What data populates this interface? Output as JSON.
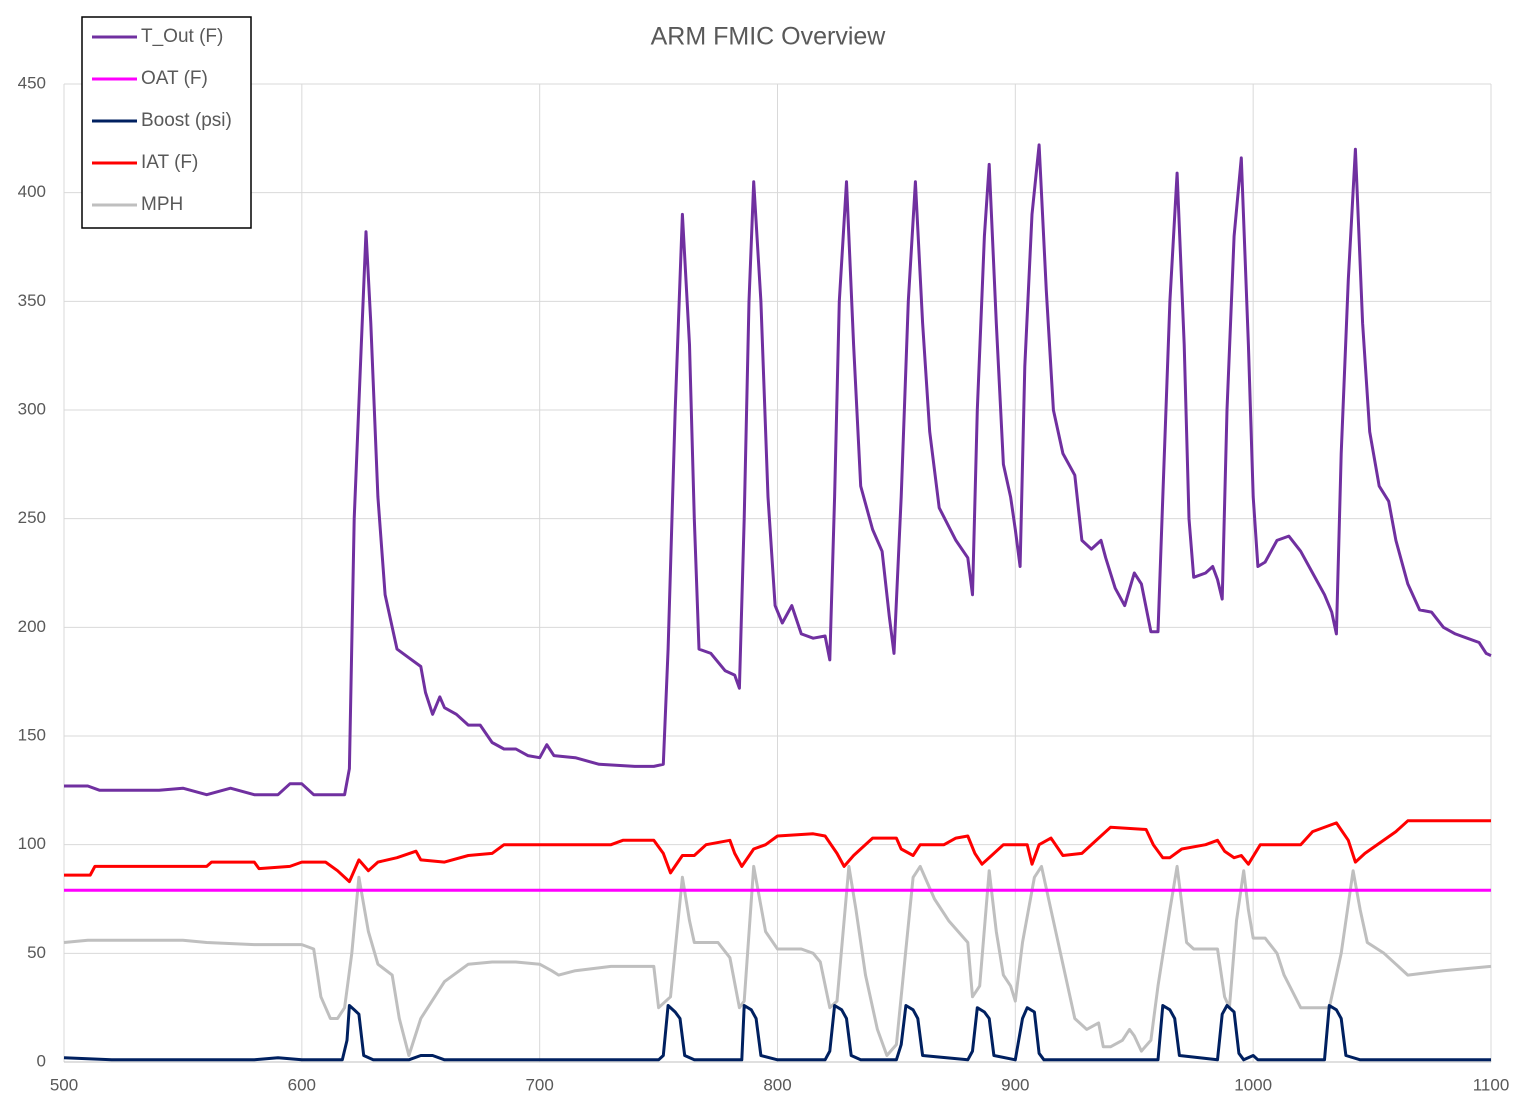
{
  "chart_data": {
    "type": "line",
    "title": "ARM FMIC Overview",
    "xlim": [
      500,
      1100
    ],
    "xticks": [
      500,
      600,
      700,
      800,
      900,
      1000,
      1100
    ],
    "ylim": [
      0,
      450
    ],
    "yticks": [
      0,
      50,
      100,
      150,
      200,
      250,
      300,
      350,
      400,
      450
    ],
    "grid": true,
    "series": [
      {
        "name": "T_Out (F)",
        "color": "#7030a0",
        "x": [
          500,
          510,
          515,
          540,
          550,
          560,
          570,
          580,
          590,
          595,
          600,
          605,
          615,
          618,
          620,
          622,
          625,
          627,
          629,
          632,
          635,
          640,
          645,
          650,
          652,
          655,
          658,
          660,
          665,
          670,
          675,
          680,
          685,
          690,
          695,
          700,
          703,
          706,
          715,
          725,
          740,
          748,
          752,
          754,
          757,
          760,
          763,
          765,
          767,
          772,
          778,
          782,
          784,
          786,
          788,
          790,
          793,
          796,
          799,
          802,
          806,
          810,
          815,
          820,
          822,
          824,
          826,
          829,
          832,
          835,
          840,
          844,
          847,
          849,
          852,
          855,
          858,
          861,
          864,
          868,
          875,
          880,
          882,
          884,
          887,
          889,
          892,
          895,
          898,
          900,
          902,
          904,
          907,
          910,
          913,
          916,
          920,
          925,
          928,
          932,
          936,
          938,
          942,
          946,
          950,
          953,
          957,
          960,
          962,
          965,
          968,
          971,
          973,
          975,
          980,
          983,
          985,
          987,
          989,
          992,
          995,
          998,
          1000,
          1002,
          1005,
          1010,
          1015,
          1020,
          1025,
          1030,
          1033,
          1035,
          1037,
          1040,
          1043,
          1046,
          1049,
          1053,
          1057,
          1060,
          1065,
          1070,
          1075,
          1080,
          1085,
          1090,
          1095,
          1098,
          1100
        ],
        "values": [
          127,
          127,
          125,
          125,
          126,
          123,
          126,
          123,
          123,
          128,
          128,
          123,
          123,
          123,
          135,
          250,
          330,
          382,
          340,
          260,
          215,
          190,
          186,
          182,
          170,
          160,
          168,
          163,
          160,
          155,
          155,
          147,
          144,
          144,
          141,
          140,
          146,
          141,
          140,
          137,
          136,
          136,
          137,
          190,
          300,
          390,
          330,
          250,
          190,
          188,
          180,
          178,
          172,
          250,
          350,
          405,
          350,
          260,
          210,
          202,
          210,
          197,
          195,
          196,
          185,
          260,
          350,
          405,
          330,
          265,
          245,
          235,
          205,
          188,
          260,
          350,
          405,
          340,
          290,
          255,
          240,
          232,
          215,
          300,
          380,
          413,
          340,
          275,
          260,
          245,
          228,
          320,
          390,
          422,
          355,
          300,
          280,
          270,
          240,
          236,
          240,
          232,
          218,
          210,
          225,
          220,
          198,
          198,
          260,
          350,
          409,
          330,
          250,
          223,
          225,
          228,
          222,
          213,
          300,
          380,
          416,
          330,
          260,
          228,
          230,
          240,
          242,
          235,
          225,
          215,
          207,
          197,
          280,
          360,
          420,
          340,
          290,
          265,
          258,
          240,
          220,
          208,
          207,
          200,
          197,
          195,
          193,
          188,
          187
        ]
      },
      {
        "name": "OAT (F)",
        "color": "#ff00ff",
        "x": [
          500,
          1100
        ],
        "values": [
          79,
          79
        ]
      },
      {
        "name": "Boost (psi)",
        "color": "#002060",
        "x": [
          500,
          520,
          580,
          590,
          600,
          617,
          619,
          620,
          622,
          624,
          626,
          630,
          645,
          650,
          655,
          660,
          700,
          750,
          752,
          754,
          757,
          759,
          761,
          765,
          780,
          785,
          786,
          789,
          791,
          793,
          800,
          820,
          822,
          824,
          827,
          829,
          831,
          835,
          850,
          852,
          854,
          857,
          859,
          861,
          880,
          882,
          884,
          887,
          889,
          891,
          900,
          903,
          905,
          908,
          910,
          912,
          960,
          962,
          965,
          967,
          969,
          985,
          987,
          989,
          992,
          994,
          996,
          1000,
          1002,
          1030,
          1032,
          1035,
          1037,
          1039,
          1045,
          1100
        ],
        "values": [
          2,
          1,
          1,
          2,
          1,
          1,
          10,
          26,
          24,
          22,
          3,
          1,
          1,
          3,
          3,
          1,
          1,
          1,
          3,
          26,
          23,
          20,
          3,
          1,
          1,
          1,
          26,
          24,
          20,
          3,
          1,
          1,
          5,
          26,
          24,
          20,
          3,
          1,
          1,
          8,
          26,
          24,
          20,
          3,
          1,
          5,
          25,
          23,
          20,
          3,
          1,
          20,
          25,
          23,
          4,
          1,
          1,
          26,
          24,
          20,
          3,
          1,
          22,
          26,
          23,
          4,
          1,
          3,
          1,
          1,
          26,
          24,
          20,
          3,
          1,
          1
        ]
      },
      {
        "name": "IAT (F)",
        "color": "#ff0000",
        "x": [
          500,
          511,
          513,
          560,
          562,
          580,
          582,
          595,
          600,
          610,
          615,
          620,
          624,
          628,
          632,
          640,
          648,
          650,
          660,
          670,
          680,
          685,
          700,
          730,
          735,
          748,
          752,
          755,
          760,
          765,
          770,
          780,
          782,
          785,
          790,
          795,
          800,
          815,
          820,
          825,
          828,
          832,
          840,
          850,
          852,
          857,
          860,
          870,
          875,
          880,
          883,
          886,
          890,
          895,
          905,
          907,
          910,
          915,
          920,
          928,
          935,
          940,
          955,
          958,
          962,
          965,
          970,
          980,
          985,
          988,
          992,
          995,
          998,
          1003,
          1020,
          1025,
          1035,
          1040,
          1043,
          1047,
          1060,
          1065,
          1100
        ],
        "values": [
          86,
          86,
          90,
          90,
          92,
          92,
          89,
          90,
          92,
          92,
          88,
          83,
          93,
          88,
          92,
          94,
          97,
          93,
          92,
          95,
          96,
          100,
          100,
          100,
          102,
          102,
          96,
          87,
          95,
          95,
          100,
          102,
          96,
          90,
          98,
          100,
          104,
          105,
          104,
          96,
          90,
          95,
          103,
          103,
          98,
          95,
          100,
          100,
          103,
          104,
          96,
          91,
          95,
          100,
          100,
          91,
          100,
          103,
          95,
          96,
          103,
          108,
          107,
          100,
          94,
          94,
          98,
          100,
          102,
          97,
          94,
          95,
          91,
          100,
          100,
          106,
          110,
          102,
          92,
          96,
          106,
          111,
          111
        ]
      },
      {
        "name": "MPH",
        "color": "#bfbfbf",
        "x": [
          500,
          510,
          520,
          530,
          540,
          550,
          560,
          580,
          600,
          605,
          608,
          612,
          615,
          618,
          621,
          624,
          628,
          632,
          638,
          641,
          645,
          650,
          660,
          670,
          680,
          690,
          700,
          705,
          708,
          715,
          730,
          748,
          750,
          755,
          760,
          763,
          765,
          770,
          775,
          780,
          784,
          786,
          790,
          795,
          800,
          810,
          815,
          818,
          822,
          825,
          830,
          833,
          837,
          842,
          846,
          850,
          857,
          860,
          866,
          872,
          880,
          882,
          885,
          889,
          892,
          895,
          898,
          900,
          903,
          908,
          911,
          915,
          920,
          925,
          930,
          935,
          937,
          940,
          945,
          948,
          950,
          953,
          957,
          960,
          965,
          968,
          972,
          975,
          980,
          985,
          988,
          990,
          993,
          996,
          998,
          1000,
          1005,
          1010,
          1013,
          1020,
          1032,
          1037,
          1042,
          1045,
          1048,
          1055,
          1060,
          1065,
          1080,
          1100
        ],
        "values": [
          55,
          56,
          56,
          56,
          56,
          56,
          55,
          54,
          54,
          52,
          30,
          20,
          20,
          25,
          50,
          85,
          60,
          45,
          40,
          20,
          3,
          20,
          37,
          45,
          46,
          46,
          45,
          42,
          40,
          42,
          44,
          44,
          25,
          30,
          85,
          65,
          55,
          55,
          55,
          48,
          25,
          28,
          90,
          60,
          52,
          52,
          50,
          46,
          25,
          28,
          90,
          70,
          40,
          15,
          3,
          8,
          85,
          90,
          75,
          65,
          55,
          30,
          35,
          88,
          60,
          40,
          35,
          28,
          55,
          85,
          90,
          70,
          45,
          20,
          15,
          18,
          7,
          7,
          10,
          15,
          12,
          5,
          10,
          35,
          70,
          90,
          55,
          52,
          52,
          52,
          30,
          25,
          65,
          88,
          70,
          57,
          57,
          50,
          40,
          25,
          25,
          50,
          88,
          70,
          55,
          50,
          45,
          40,
          42,
          44
        ]
      }
    ]
  }
}
